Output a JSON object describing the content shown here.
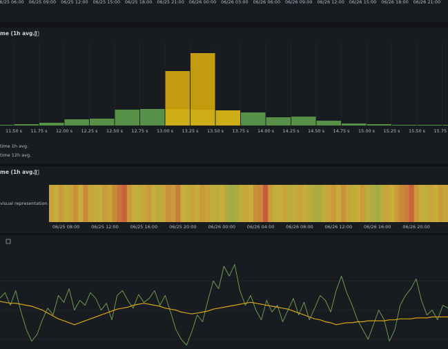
{
  "top_axis": {
    "xlim": [
      5.03,
      46.98
    ],
    "xticks": [
      {
        "value": 6,
        "label": "06/25 06:00"
      },
      {
        "value": 9,
        "label": "06/25 09:00"
      },
      {
        "value": 12,
        "label": "06/25 12:00"
      },
      {
        "value": 15,
        "label": "06/25 15:00"
      },
      {
        "value": 18,
        "label": "06/25 18:00"
      },
      {
        "value": 21,
        "label": "06/25 21:00"
      },
      {
        "value": 24,
        "label": "06/26 00:00"
      },
      {
        "value": 27,
        "label": "06/26 03:00"
      },
      {
        "value": 30,
        "label": "06/26 06:00"
      },
      {
        "value": 33,
        "label": "06/26 09:00"
      },
      {
        "value": 36,
        "label": "06/26 12:00"
      },
      {
        "value": 39,
        "label": "06/26 15:00"
      },
      {
        "value": 42,
        "label": "06/26 18:00"
      },
      {
        "value": 45,
        "label": "06/26 21:00"
      }
    ]
  },
  "panels": [
    {
      "title": "me (1h avg.)",
      "chart": {
        "type": "histogram",
        "bins": [
          11.25,
          11.5,
          11.75,
          12.0,
          12.25,
          12.5,
          12.75,
          13.0,
          13.25,
          13.5,
          13.75,
          14.0,
          14.25,
          14.5,
          14.75,
          15.0,
          15.25,
          15.5,
          15.75,
          16.0
        ],
        "series": [
          {
            "name": "time 1h avg.",
            "color": "#5e9e4c",
            "values": [
              1,
              2,
              4,
              9,
              10,
              23,
              24,
              24,
              23,
              22,
              19,
              12,
              13,
              7,
              3,
              2,
              1,
              1,
              1
            ]
          },
          {
            "name": "time 12h avg.",
            "color": "#e0b20c",
            "values": [
              0,
              0,
              0,
              0,
              0,
              0,
              0,
              79,
              105,
              22,
              0,
              0,
              0,
              0,
              0,
              0,
              0,
              0,
              0
            ]
          }
        ],
        "xlim": [
          11.363,
          15.808
        ],
        "ylim": [
          0,
          110
        ],
        "grid": true,
        "xticks": [
          {
            "value": 11.5,
            "label": "11.50 s"
          },
          {
            "value": 11.75,
            "label": "11.75 s"
          },
          {
            "value": 12.0,
            "label": "12.00 s"
          },
          {
            "value": 12.25,
            "label": "12.25 s"
          },
          {
            "value": 12.5,
            "label": "12.50 s"
          },
          {
            "value": 12.75,
            "label": "12.75 s"
          },
          {
            "value": 13.0,
            "label": "13.00 s"
          },
          {
            "value": 13.25,
            "label": "13.25 s"
          },
          {
            "value": 13.5,
            "label": "13.50 s"
          },
          {
            "value": 13.75,
            "label": "13.75 s"
          },
          {
            "value": 14.0,
            "label": "14.00 s"
          },
          {
            "value": 14.25,
            "label": "14.25 s"
          },
          {
            "value": 14.5,
            "label": "14.50 s"
          },
          {
            "value": 14.75,
            "label": "14.75 s"
          },
          {
            "value": 15.0,
            "label": "15.00 s"
          },
          {
            "value": 15.25,
            "label": "15.25 s"
          },
          {
            "value": 15.5,
            "label": "15.50 s"
          },
          {
            "value": 15.75,
            "label": "15.75 s"
          }
        ]
      }
    },
    {
      "title": "me (1h avg.)",
      "chart": {
        "type": "heatmap",
        "ylabel": "visual representation",
        "xlim": [
          6.25,
          47.25
        ],
        "xticks": [
          {
            "value": 8,
            "label": "06/25 08:00"
          },
          {
            "value": 12,
            "label": "06/25 12:00"
          },
          {
            "value": 16,
            "label": "06/25 16:00"
          },
          {
            "value": 20,
            "label": "06/25 20:00"
          },
          {
            "value": 24,
            "label": "06/26 00:00"
          },
          {
            "value": 28,
            "label": "06/26 04:00"
          },
          {
            "value": 32,
            "label": "06/26 08:00"
          },
          {
            "value": 36,
            "label": "06/26 12:00"
          },
          {
            "value": 40,
            "label": "06/26 16:00"
          },
          {
            "value": 44,
            "label": "06/26 20:00"
          }
        ],
        "color_scale": [
          "#78ab4f",
          "#c9ad3a",
          "#c8513b"
        ],
        "values": [
          0.55,
          0.5,
          0.6,
          0.45,
          0.55,
          0.65,
          0.5,
          0.7,
          0.55,
          0.45,
          0.5,
          0.6,
          0.55,
          0.7,
          0.8,
          0.9,
          0.6,
          0.5,
          0.45,
          0.55,
          0.6,
          0.5,
          0.4,
          0.55,
          0.65,
          0.6,
          0.75,
          0.5,
          0.45,
          0.55,
          0.5,
          0.6,
          0.55,
          0.45,
          0.4,
          0.5,
          0.35,
          0.25,
          0.3,
          0.45,
          0.55,
          0.5,
          0.65,
          0.7,
          0.95,
          0.6,
          0.45,
          0.5,
          0.55,
          0.4,
          0.45,
          0.55,
          0.5,
          0.4,
          0.35,
          0.3,
          0.45,
          0.55,
          0.6,
          0.5,
          0.65,
          0.55,
          0.45,
          0.5,
          0.6,
          0.4,
          0.35,
          0.25,
          0.4,
          0.55,
          0.5,
          0.6,
          0.7,
          0.75,
          0.9,
          0.6,
          0.5,
          0.45,
          0.55,
          0.5,
          0.6,
          0.55
        ]
      }
    },
    {
      "chart": {
        "type": "line",
        "x": [
          5,
          5.5,
          6,
          6.5,
          7,
          7.5,
          8,
          8.5,
          9,
          9.5,
          10,
          10.5,
          11,
          11.5,
          12,
          12.5,
          13,
          13.5,
          14,
          14.5,
          15,
          15.5,
          16,
          16.5,
          17,
          17.5,
          18,
          18.5,
          19,
          19.5,
          20,
          20.5,
          21,
          21.5,
          22,
          22.5,
          23,
          23.5,
          24,
          24.5,
          25,
          25.5,
          26,
          26.5,
          27,
          27.5,
          28,
          28.5,
          29,
          29.5,
          30,
          30.5,
          31,
          31.5,
          32,
          32.5,
          33,
          33.5,
          34,
          34.5,
          35,
          35.5,
          36,
          36.5,
          37,
          37.5,
          38,
          38.5,
          39,
          39.5,
          40,
          40.5,
          41,
          41.5,
          42,
          42.5,
          43,
          43.5,
          44,
          44.5,
          45,
          45.5,
          46,
          46.5,
          47
        ],
        "series": [
          {
            "color": "#6c9a52",
            "values": [
              52,
              58,
              45,
              60,
              38,
              20,
              8,
              15,
              30,
              42,
              35,
              55,
              48,
              62,
              40,
              50,
              45,
              58,
              52,
              40,
              47,
              30,
              55,
              60,
              50,
              42,
              56,
              48,
              52,
              60,
              45,
              55,
              38,
              20,
              10,
              4,
              18,
              35,
              28,
              50,
              70,
              62,
              85,
              75,
              87,
              60,
              45,
              55,
              40,
              30,
              50,
              38,
              45,
              28,
              40,
              52,
              35,
              48,
              30,
              42,
              55,
              50,
              38,
              60,
              75,
              58,
              45,
              30,
              20,
              10,
              25,
              40,
              30,
              8,
              20,
              45,
              55,
              62,
              72,
              50,
              35,
              40,
              30,
              45,
              42
            ]
          },
          {
            "color": "#d9a60f",
            "values": [
              49,
              48,
              47,
              47,
              46,
              45,
              44,
              42,
              40,
              37,
              34,
              31,
              29,
              27,
              25,
              27,
              29,
              31,
              33,
              35,
              37,
              39,
              41,
              42,
              43,
              45,
              46,
              47,
              46,
              45,
              44,
              42,
              41,
              40,
              38,
              37,
              36,
              37,
              38,
              39,
              41,
              42,
              43,
              44,
              45,
              46,
              47,
              48,
              47,
              46,
              45,
              44,
              43,
              42,
              41,
              39,
              37,
              35,
              33,
              31,
              30,
              28,
              27,
              25,
              26,
              27,
              27,
              28,
              28,
              29,
              29,
              29,
              29,
              30,
              30,
              31,
              31,
              31,
              32,
              32,
              32,
              33,
              33,
              33,
              33
            ]
          }
        ],
        "xlim": [
          5.03,
          46.98
        ],
        "ylim": [
          0,
          100
        ],
        "yticks": [
          10,
          40,
          70
        ],
        "grid": true
      }
    }
  ]
}
